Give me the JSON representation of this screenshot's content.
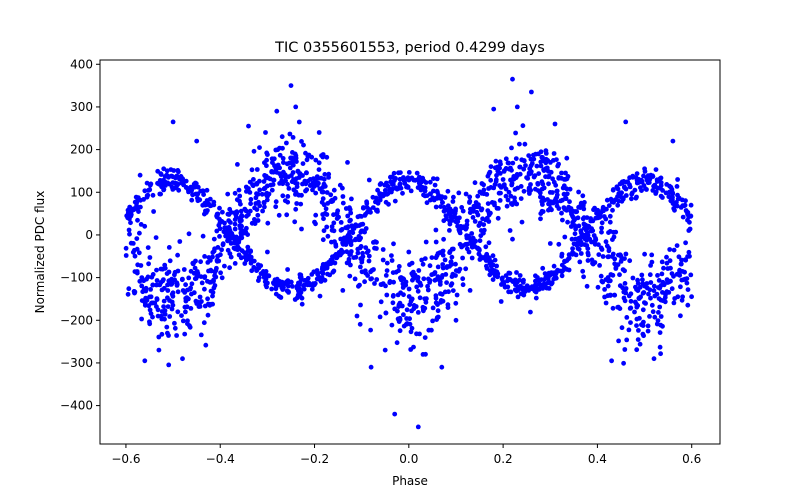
{
  "chart_data": {
    "type": "scatter",
    "title": "TIC 0355601553, period 0.4299 days",
    "xlabel": "Phase",
    "ylabel": "Normalized PDC flux",
    "xlim": [
      -0.655,
      0.66
    ],
    "ylim": [
      -490,
      410
    ],
    "xticks": [
      -0.6,
      -0.4,
      -0.2,
      0.0,
      0.2,
      0.4,
      0.6
    ],
    "xtick_labels": [
      "−0.6",
      "−0.4",
      "−0.2",
      "0.0",
      "0.2",
      "0.4",
      "0.6"
    ],
    "yticks": [
      -400,
      -300,
      -200,
      -100,
      0,
      100,
      200,
      300,
      400
    ],
    "ytick_labels": [
      "−400",
      "−300",
      "−200",
      "−100",
      "0",
      "100",
      "200",
      "300",
      "400"
    ],
    "grid": false,
    "marker_color": "#0000ff",
    "series": [
      {
        "components": [
          {
            "kind": "sine",
            "phase_range": [
              -0.6,
              0.6
            ],
            "amplitude": 125,
            "period": 0.5,
            "phase_offset": 0.0,
            "scatter": 14,
            "n": 900
          },
          {
            "kind": "sine",
            "phase_range": [
              -0.6,
              0.6
            ],
            "amplitude": -150,
            "period": 0.5,
            "phase_offset": 0.0,
            "scatter": 45,
            "n": 1400
          }
        ],
        "outliers": [
          [
            -0.5,
            265
          ],
          [
            -0.57,
            140
          ],
          [
            -0.45,
            220
          ],
          [
            -0.52,
            155
          ],
          [
            -0.56,
            -295
          ],
          [
            -0.48,
            -290
          ],
          [
            -0.53,
            -270
          ],
          [
            -0.34,
            255
          ],
          [
            -0.28,
            290
          ],
          [
            -0.25,
            350
          ],
          [
            -0.24,
            300
          ],
          [
            -0.19,
            240
          ],
          [
            -0.13,
            170
          ],
          [
            0.18,
            295
          ],
          [
            0.22,
            365
          ],
          [
            0.23,
            300
          ],
          [
            0.26,
            335
          ],
          [
            0.31,
            260
          ],
          [
            0.46,
            265
          ],
          [
            0.56,
            220
          ],
          [
            0.5,
            155
          ],
          [
            0.43,
            -295
          ],
          [
            0.52,
            -290
          ],
          [
            0.57,
            130
          ],
          [
            -0.03,
            -420
          ],
          [
            0.02,
            -450
          ],
          [
            -0.08,
            -310
          ],
          [
            0.07,
            -310
          ],
          [
            0.0,
            -40
          ],
          [
            -0.2,
            30
          ],
          [
            -0.3,
            -40
          ],
          [
            0.24,
            30
          ],
          [
            0.3,
            -20
          ],
          [
            -0.18,
            10
          ],
          [
            0.22,
            -10
          ],
          [
            -0.24,
            60
          ],
          [
            0.28,
            50
          ],
          [
            -0.05,
            -270
          ],
          [
            0.03,
            -280
          ],
          [
            0.1,
            -200
          ],
          [
            -0.11,
            -190
          ],
          [
            -0.14,
            -130
          ],
          [
            0.13,
            -130
          ],
          [
            0.38,
            -60
          ],
          [
            -0.38,
            60
          ]
        ]
      }
    ]
  }
}
